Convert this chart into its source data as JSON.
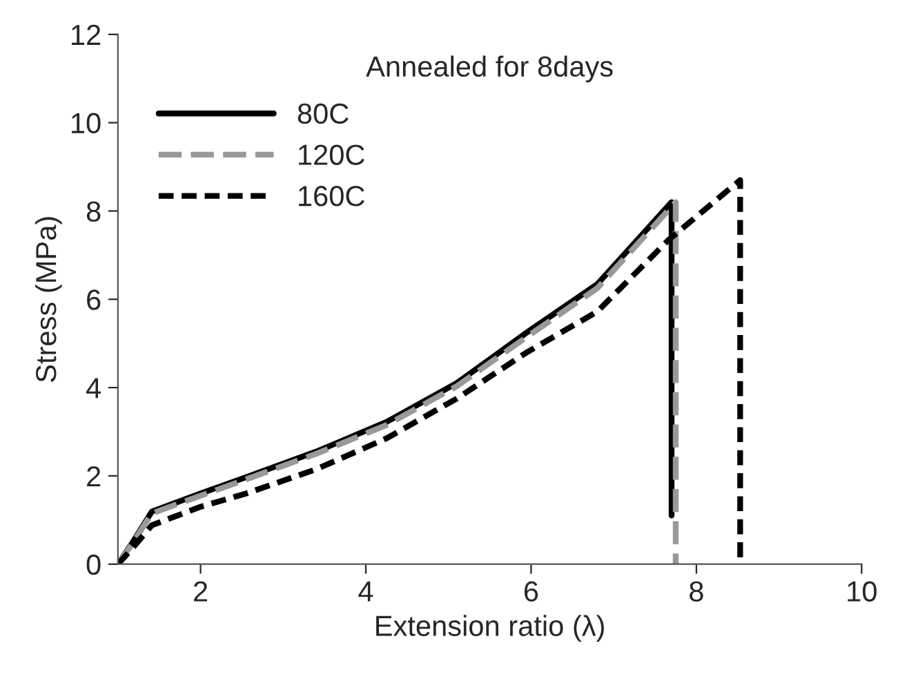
{
  "chart_data": {
    "type": "line",
    "xlabel": "Extension ratio (λ)",
    "ylabel": "Stress (MPa)",
    "annotations": [
      "Annealed for 8days"
    ],
    "xlim": [
      1,
      10
    ],
    "xticks": [
      2,
      4,
      6,
      8,
      10
    ],
    "ylim": [
      0,
      12
    ],
    "yticks": [
      0,
      2,
      4,
      6,
      8,
      10,
      12
    ],
    "grid": false,
    "legend": "top left",
    "marker": "none",
    "series": [
      {
        "name": "80C",
        "color": "#000000",
        "line_style": "solid",
        "x": [
          1,
          1.17,
          1.41,
          2,
          2.55,
          3.4,
          4.25,
          5.1,
          5.95,
          6.8,
          7.7,
          7.7
        ],
        "values": [
          0,
          0.47,
          1.19,
          1.6,
          1.97,
          2.55,
          3.22,
          4.1,
          5.25,
          6.34,
          8.2,
          1.1
        ]
      },
      {
        "name": "120C",
        "color": "#999999",
        "line_style": "dashed",
        "x": [
          1,
          1.17,
          1.41,
          2,
          2.55,
          3.4,
          4.25,
          5.1,
          5.95,
          6.8,
          7.75,
          7.75
        ],
        "values": [
          0,
          0.45,
          1.15,
          1.55,
          1.92,
          2.5,
          3.15,
          4.03,
          5.15,
          6.25,
          8.2,
          0
        ]
      },
      {
        "name": "160C",
        "color": "#000000",
        "line_style": "dotted",
        "x": [
          1,
          1.17,
          1.41,
          2,
          2.55,
          3.4,
          4.25,
          5.1,
          5.95,
          6.8,
          7.66,
          8.53,
          8.53
        ],
        "values": [
          0,
          0.35,
          0.88,
          1.3,
          1.6,
          2.15,
          2.85,
          3.75,
          4.8,
          5.72,
          7.34,
          8.7,
          0
        ]
      }
    ]
  }
}
